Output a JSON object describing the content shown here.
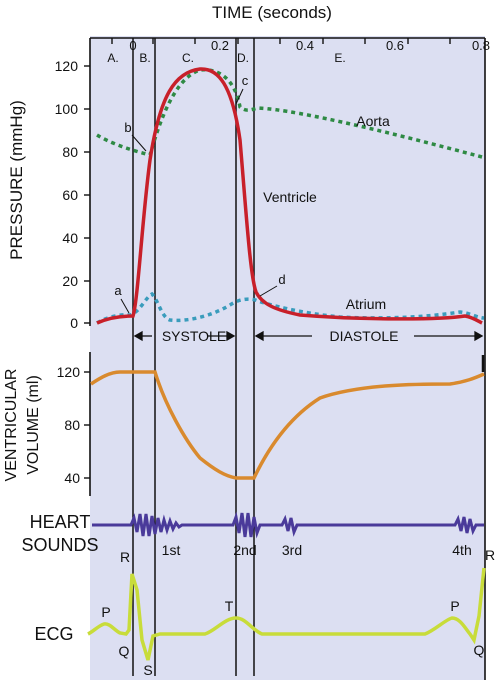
{
  "title": "TIME (seconds)",
  "time_ticks": [
    "0",
    "0.2",
    "0.4",
    "0.6",
    "0.8"
  ],
  "phases": [
    "A.",
    "B.",
    "C.",
    "D.",
    "E."
  ],
  "pressure_axis": {
    "label": "PRESSURE (mmHg)",
    "ticks": [
      "120",
      "100",
      "80",
      "60",
      "40",
      "20",
      "0"
    ]
  },
  "curve_labels": {
    "aorta": "Aorta",
    "ventricle": "Ventricle",
    "atrium": "Atrium"
  },
  "points": {
    "a": "a",
    "b": "b",
    "c": "c",
    "d": "d"
  },
  "systole_label": "SYSTOLE",
  "diastole_label": "DIASTOLE",
  "volume_axis": {
    "label_line1": "VENTRICULAR",
    "label_line2": "VOLUME (ml)",
    "ticks": [
      "120",
      "80",
      "40"
    ]
  },
  "heart_sounds": {
    "label_line1": "HEART",
    "label_line2": "SOUNDS",
    "sounds": [
      "1st",
      "2nd",
      "3rd",
      "4th"
    ]
  },
  "ecg": {
    "label": "ECG",
    "waves": {
      "p1": "P",
      "r1": "R",
      "q1": "Q",
      "s1": "S",
      "t1": "T",
      "p2": "P",
      "r2": "R",
      "q2": "Q"
    }
  },
  "colors": {
    "background": "#dcdff2",
    "ventricle": "#c8202a",
    "aorta": "#2e8a44",
    "atrium": "#3a9cbc",
    "volume": "#d98a2e",
    "sounds": "#4a3a9a",
    "ecg": "#c8dc3a"
  }
}
